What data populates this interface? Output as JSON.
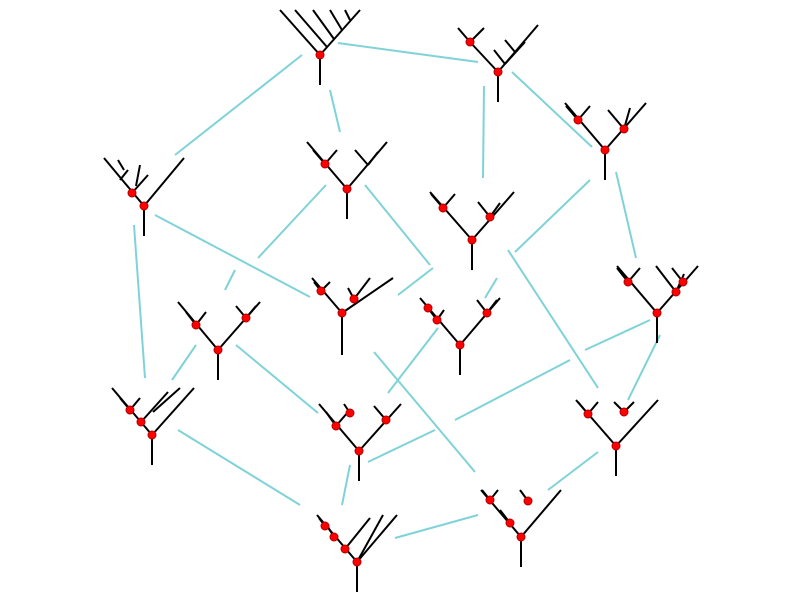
{
  "diagram": {
    "type": "flip-graph-of-binary-trees",
    "colors": {
      "background": "#ffffff",
      "edge": "#7fd3d8",
      "tree": "#000000",
      "vertex": "#ff0000"
    }
  }
}
